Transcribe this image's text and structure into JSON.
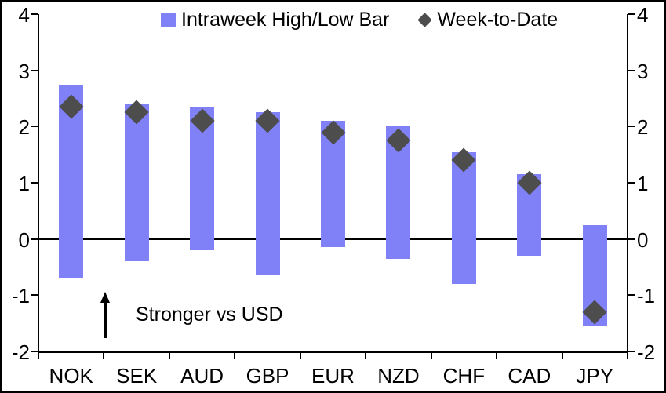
{
  "legend": {
    "items": [
      {
        "label": "Intraweek High/Low Bar",
        "marker": "square",
        "color": "#8080F7"
      },
      {
        "label": "Week-to-Date",
        "marker": "diamond",
        "color": "#4D4D4D"
      }
    ]
  },
  "annotation": {
    "text": "Stronger vs USD",
    "arrow": "up"
  },
  "chart_data": {
    "type": "bar",
    "subtype": "floating-range-bars-with-diamond-markers",
    "title": "",
    "xlabel": "",
    "ylabel": "",
    "categories": [
      "NOK",
      "SEK",
      "AUD",
      "GBP",
      "EUR",
      "NZD",
      "CHF",
      "CAD",
      "JPY"
    ],
    "series": [
      {
        "name": "Intraweek High/Low Bar",
        "type": "range",
        "color": "#8080F7",
        "high": [
          2.75,
          2.4,
          2.35,
          2.25,
          2.1,
          2.0,
          1.55,
          1.15,
          0.25
        ],
        "low": [
          -0.7,
          -0.4,
          -0.2,
          -0.65,
          -0.15,
          -0.35,
          -0.8,
          -0.3,
          -1.55
        ]
      },
      {
        "name": "Week-to-Date",
        "type": "point",
        "marker": "diamond",
        "color": "#4D4D4D",
        "values": [
          2.35,
          2.25,
          2.1,
          2.1,
          1.9,
          1.75,
          1.4,
          1.0,
          -1.3
        ]
      }
    ],
    "ylim": [
      -2,
      4
    ],
    "yticks_left": [
      4,
      3,
      2,
      1,
      0,
      -1,
      -2
    ],
    "yticks_right": [
      4,
      3,
      2,
      1,
      0,
      -1,
      -2
    ],
    "grid": false,
    "zero_line": true,
    "legend_position": "top-center",
    "axis_color": "#000000",
    "background": "#FFFFFF"
  }
}
